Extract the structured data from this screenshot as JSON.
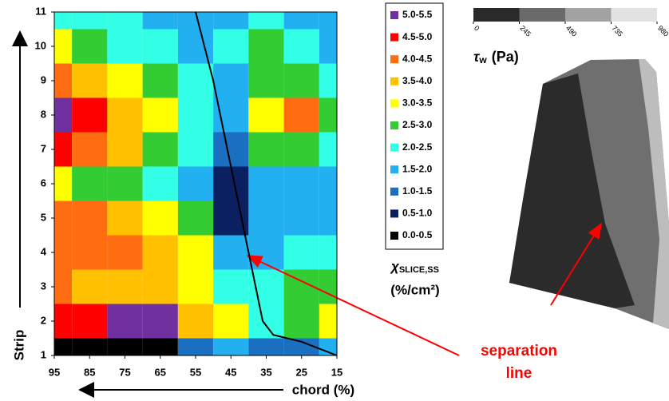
{
  "chart_data": {
    "type": "heatmap",
    "x_label": "chord (%)",
    "y_label": "Strip",
    "x": [
      95,
      85,
      75,
      65,
      55,
      45,
      35,
      25,
      15
    ],
    "y": [
      1,
      2,
      3,
      4,
      5,
      6,
      7,
      8,
      9,
      10,
      11
    ],
    "xlim": [
      95,
      15
    ],
    "ylim": [
      1,
      11
    ],
    "xticks": [
      95,
      85,
      75,
      65,
      55,
      45,
      35,
      25,
      15
    ],
    "yticks": [
      1,
      2,
      3,
      4,
      5,
      6,
      7,
      8,
      9,
      10,
      11
    ],
    "z": [
      [
        0.3,
        0.3,
        0.3,
        0.4,
        1.0,
        1.5,
        1.2,
        1.0,
        1.5
      ],
      [
        4.5,
        4.8,
        5.0,
        5.0,
        3.5,
        3.0,
        2.0,
        2.5,
        3.0
      ],
      [
        4.0,
        3.8,
        3.8,
        3.8,
        3.2,
        2.0,
        2.0,
        2.5,
        2.5
      ],
      [
        4.2,
        4.0,
        4.0,
        3.8,
        3.0,
        1.8,
        1.5,
        2.0,
        2.0
      ],
      [
        4.3,
        4.0,
        3.5,
        3.0,
        2.5,
        0.6,
        1.5,
        1.5,
        1.5
      ],
      [
        3.0,
        2.8,
        2.5,
        2.2,
        1.8,
        0.8,
        1.5,
        1.5,
        1.5
      ],
      [
        4.8,
        4.2,
        3.5,
        2.8,
        2.0,
        1.2,
        2.5,
        2.5,
        2.0
      ],
      [
        5.2,
        4.5,
        3.8,
        3.0,
        2.2,
        1.5,
        3.0,
        4.0,
        2.5
      ],
      [
        4.3,
        3.8,
        3.0,
        2.5,
        2.0,
        1.5,
        2.5,
        2.5,
        2.0
      ],
      [
        3.0,
        2.5,
        2.0,
        2.0,
        1.5,
        2.0,
        2.5,
        2.0,
        1.5
      ],
      [
        2.0,
        2.0,
        2.0,
        1.5,
        1.5,
        1.5,
        2.0,
        1.5,
        1.5
      ]
    ],
    "legend": [
      {
        "label": "5.0-5.5",
        "range": [
          5.0,
          5.5
        ],
        "color": "#7030a0"
      },
      {
        "label": "4.5-5.0",
        "range": [
          4.5,
          5.0
        ],
        "color": "#ff0000"
      },
      {
        "label": "4.0-4.5",
        "range": [
          4.0,
          4.5
        ],
        "color": "#ff6d10"
      },
      {
        "label": "3.5-4.0",
        "range": [
          3.5,
          4.0
        ],
        "color": "#ffc000"
      },
      {
        "label": "3.0-3.5",
        "range": [
          3.0,
          3.5
        ],
        "color": "#ffff00"
      },
      {
        "label": "2.5-3.0",
        "range": [
          2.5,
          3.0
        ],
        "color": "#33cc33"
      },
      {
        "label": "2.0-2.5",
        "range": [
          2.0,
          2.5
        ],
        "color": "#33ffe6"
      },
      {
        "label": "1.5-2.0",
        "range": [
          1.5,
          2.0
        ],
        "color": "#22b0f0"
      },
      {
        "label": "1.0-1.5",
        "range": [
          1.0,
          1.5
        ],
        "color": "#1a6fc0"
      },
      {
        "label": "0.5-1.0",
        "range": [
          0.5,
          1.0
        ],
        "color": "#0a2060"
      },
      {
        "label": "0.0-0.5",
        "range": [
          0.0,
          0.5
        ],
        "color": "#000000"
      }
    ],
    "legend_title": {
      "symbol": "χ",
      "subscript": "SLICE,SS",
      "unit": "(%/cm²)"
    },
    "separation_line": {
      "x": [
        55,
        50,
        46,
        44,
        42,
        40,
        38,
        36,
        33,
        25,
        15
      ],
      "y": [
        11,
        9,
        7,
        6,
        5,
        4,
        3,
        2,
        1.6,
        1.4,
        1
      ],
      "color": "#000000"
    },
    "annotation": {
      "line1": "separation",
      "line2": "line",
      "color": "#ff0000"
    },
    "colorbar": {
      "ticks": [
        0,
        245,
        490,
        735,
        980
      ],
      "lim": [
        0,
        980
      ],
      "colors": [
        "#2a2a2a",
        "#6a6a6a",
        "#a2a2a2",
        "#e2e2e2"
      ],
      "label": {
        "symbol": "τ",
        "subscript": "w",
        "unit": "(Pa)"
      }
    }
  }
}
